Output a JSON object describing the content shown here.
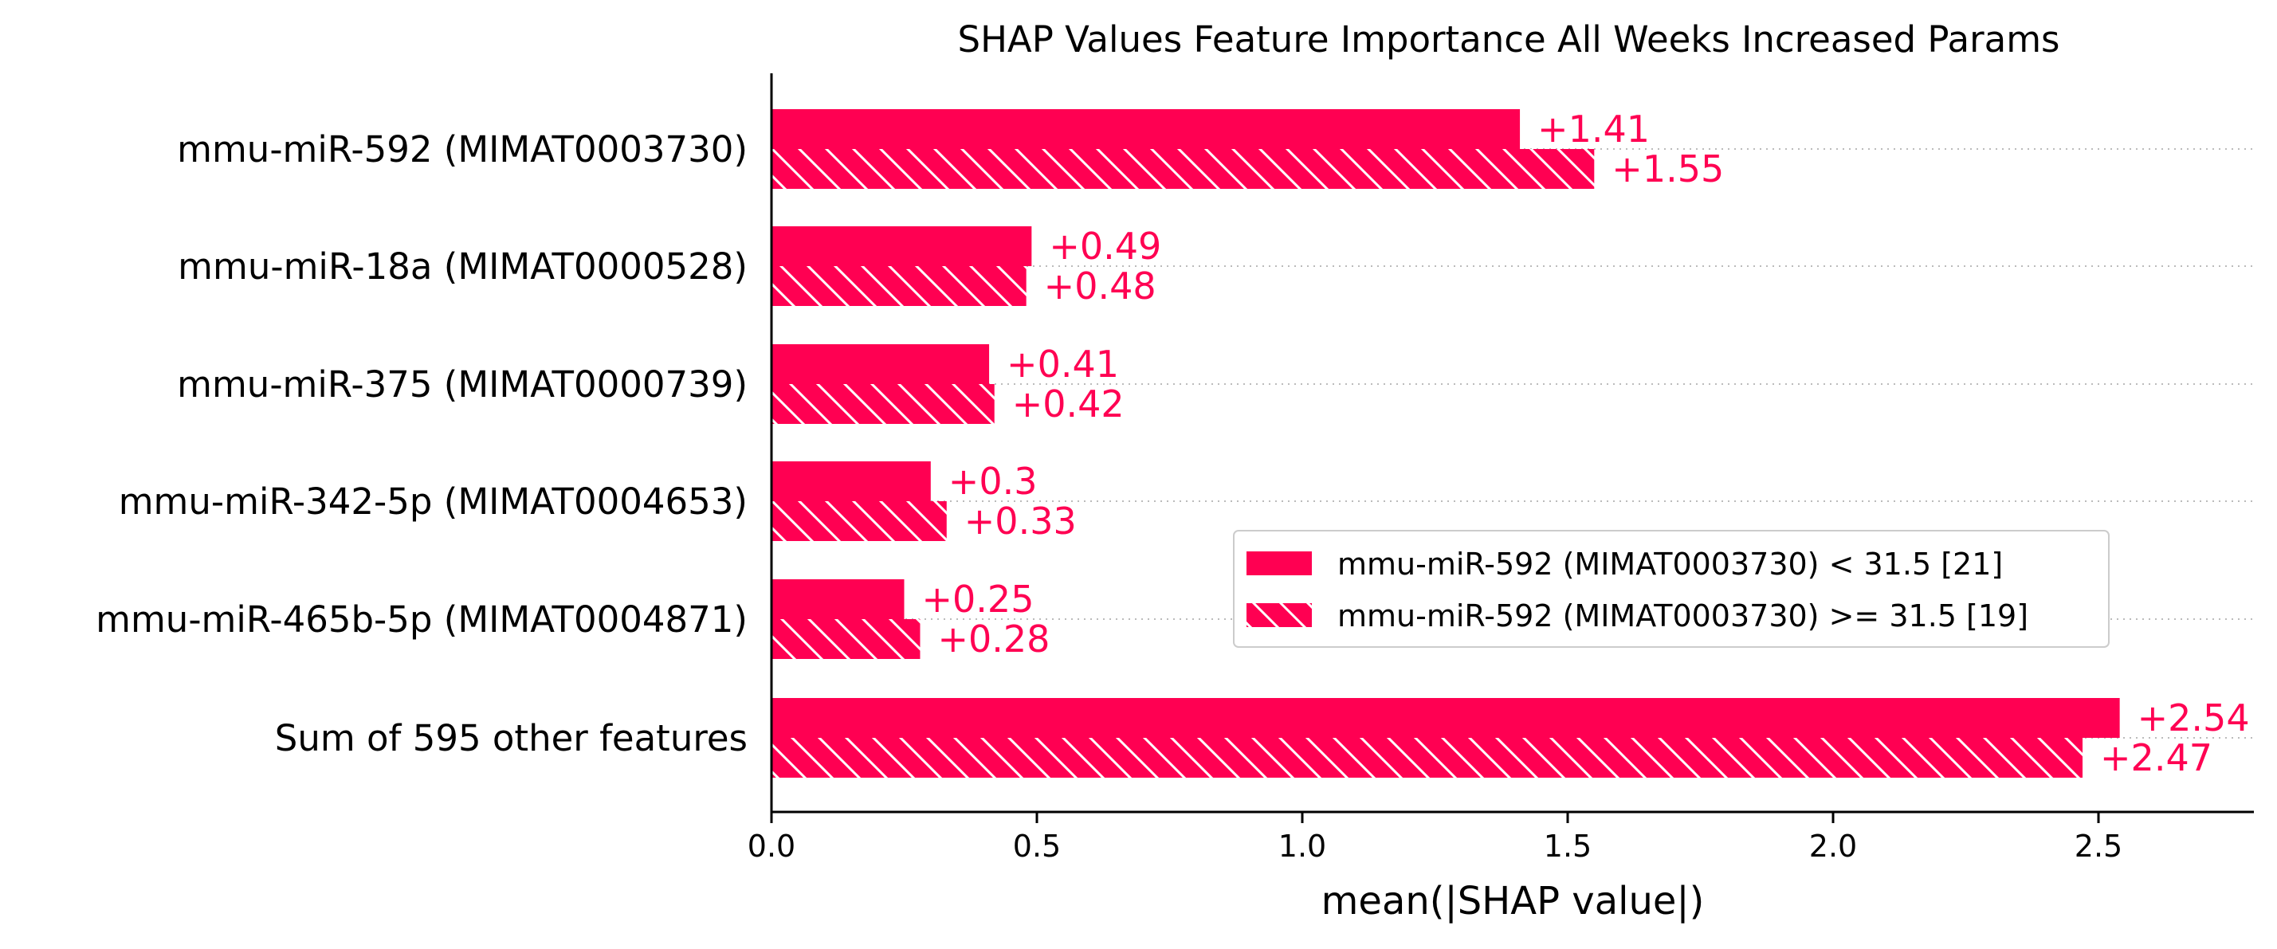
{
  "chart_data": {
    "type": "bar",
    "orientation": "horizontal",
    "title": "SHAP Values Feature Importance All Weeks Increased Params",
    "xlabel": "mean(|SHAP value|)",
    "ylabel": "",
    "xlim": [
      0,
      2.8
    ],
    "xticks": [
      "0.0",
      "0.5",
      "1.0",
      "1.5",
      "2.0",
      "2.5"
    ],
    "grid": "dotted horizontal lines at each feature",
    "legend_position": "center-right",
    "bar_color": "#ff0052",
    "categories": [
      "mmu-miR-592 (MIMAT0003730)",
      "mmu-miR-18a (MIMAT0000528)",
      "mmu-miR-375 (MIMAT0000739)",
      "mmu-miR-342-5p (MIMAT0004653)",
      "mmu-miR-465b-5p (MIMAT0004871)",
      "Sum of 595 other features"
    ],
    "series": [
      {
        "name": "mmu-miR-592 (MIMAT0003730) < 31.5 [21]",
        "pattern": "solid",
        "values": [
          1.41,
          0.49,
          0.41,
          0.3,
          0.25,
          2.54
        ],
        "labels": [
          "+1.41",
          "+0.49",
          "+0.41",
          "+0.3",
          "+0.25",
          "+2.54"
        ]
      },
      {
        "name": "mmu-miR-592 (MIMAT0003730) >= 31.5 [19]",
        "pattern": "hatched",
        "values": [
          1.55,
          0.48,
          0.42,
          0.33,
          0.28,
          2.47
        ],
        "labels": [
          "+1.55",
          "+0.48",
          "+0.42",
          "+0.33",
          "+0.28",
          "+2.47"
        ]
      }
    ]
  }
}
